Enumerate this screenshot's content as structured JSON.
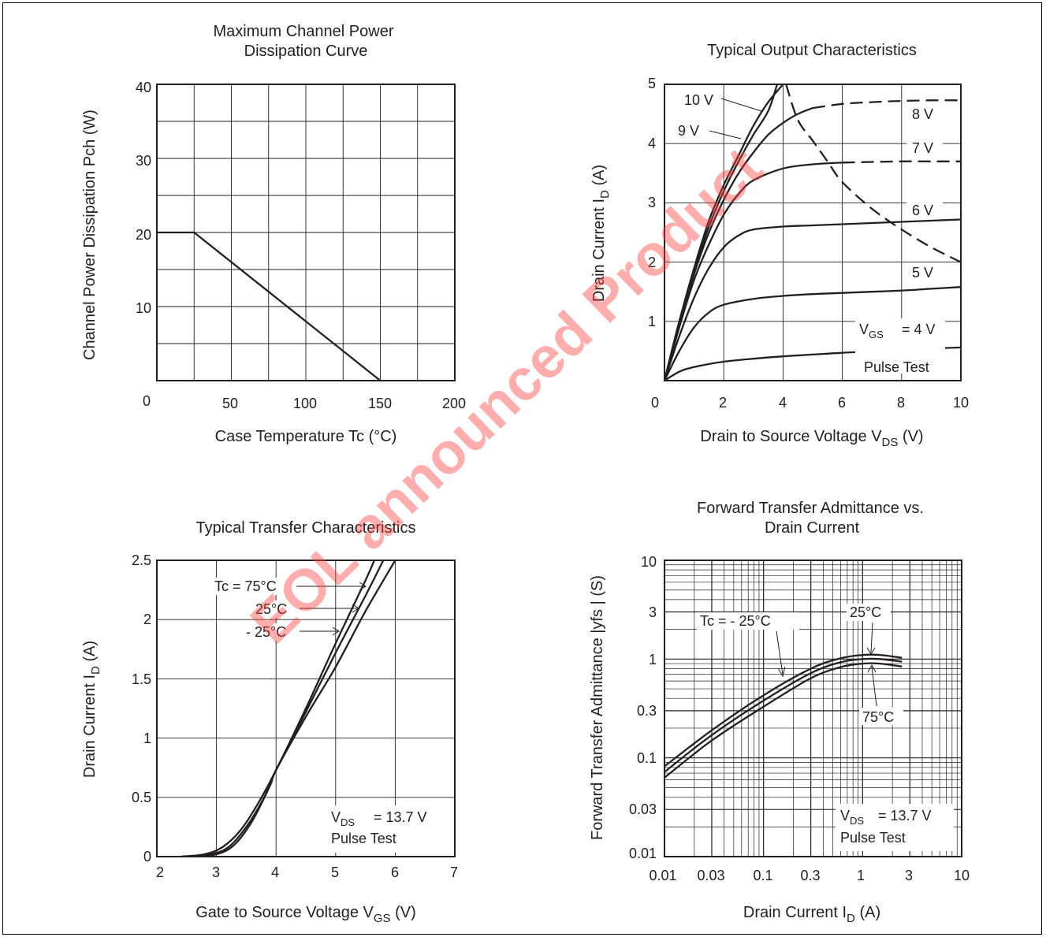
{
  "watermark": {
    "text": "EOL announced Product",
    "color": "#ff0000"
  },
  "colors": {
    "ink": "#231f20",
    "grid": "#231f20"
  },
  "chart_data": [
    {
      "id": "power",
      "type": "line",
      "title_lines": [
        "Maximum Channel Power",
        "Dissipation Curve"
      ],
      "xlabel": "Case Temperature   Tc  (°C)",
      "ylabel": "Channel Power Dissipation    Pch  (W)",
      "xlim": [
        0,
        200
      ],
      "ylim": [
        0,
        40
      ],
      "x_ticks": [
        "0",
        "50",
        "100",
        "150",
        "200"
      ],
      "y_ticks": [
        "10",
        "20",
        "30",
        "40"
      ],
      "series": [
        {
          "x": [
            0,
            25,
            150
          ],
          "y": [
            20,
            20,
            0
          ]
        }
      ]
    },
    {
      "id": "output",
      "type": "line",
      "title": "Typical Output Characteristics",
      "xlabel": {
        "main": "Drain to Source Voltage   V",
        "sub": "DS",
        "unit": "  (V)"
      },
      "ylabel": {
        "main": "Drain Current   I",
        "sub": "D",
        "unit": "  (A)"
      },
      "xlim": [
        0,
        10
      ],
      "ylim": [
        0,
        5
      ],
      "x_ticks": [
        "0",
        "2",
        "4",
        "6",
        "8",
        "10"
      ],
      "y_ticks": [
        "1",
        "2",
        "3",
        "4",
        "5"
      ],
      "series": [
        {
          "name": "10 V",
          "x": [
            0,
            0.5,
            1,
            1.5,
            2,
            2.5,
            3,
            3.5,
            4
          ],
          "y": [
            0,
            1.0,
            1.9,
            2.7,
            3.3,
            3.8,
            4.3,
            4.7,
            5.0
          ]
        },
        {
          "name": "9 V",
          "x": [
            0,
            0.5,
            1,
            1.5,
            2,
            2.5,
            3,
            3.5,
            3.8
          ],
          "y": [
            0,
            1.0,
            1.85,
            2.6,
            3.2,
            3.7,
            4.15,
            4.55,
            5.0
          ]
        },
        {
          "name": "8 V",
          "x": [
            0,
            0.5,
            1,
            1.5,
            2,
            2.5,
            3,
            3.5,
            4,
            4.5,
            5
          ],
          "y": [
            0,
            0.95,
            1.8,
            2.5,
            3.05,
            3.5,
            3.85,
            4.15,
            4.35,
            4.5,
            4.6
          ]
        },
        {
          "name": "8 V (ext)",
          "x": [
            5,
            6,
            7,
            8,
            9,
            10
          ],
          "y": [
            4.6,
            4.67,
            4.7,
            4.72,
            4.73,
            4.73
          ]
        },
        {
          "name": "7 V",
          "x": [
            0,
            0.5,
            1,
            1.5,
            2,
            2.5,
            3,
            4,
            5,
            6
          ],
          "y": [
            0,
            0.9,
            1.7,
            2.3,
            2.8,
            3.15,
            3.38,
            3.58,
            3.65,
            3.68
          ]
        },
        {
          "name": "7 V (ext)",
          "x": [
            6,
            7,
            8,
            9,
            10
          ],
          "y": [
            3.68,
            3.69,
            3.7,
            3.7,
            3.7
          ]
        },
        {
          "name": "6 V",
          "x": [
            0,
            0.5,
            1,
            1.5,
            2,
            2.5,
            3,
            4,
            5,
            6,
            7,
            8,
            9,
            10
          ],
          "y": [
            0,
            0.75,
            1.4,
            1.9,
            2.25,
            2.45,
            2.55,
            2.6,
            2.62,
            2.64,
            2.66,
            2.68,
            2.7,
            2.72
          ]
        },
        {
          "name": "5 V",
          "x": [
            0,
            0.5,
            1,
            1.5,
            2,
            3,
            4,
            5,
            6,
            7,
            8,
            9,
            10
          ],
          "y": [
            0,
            0.5,
            0.9,
            1.15,
            1.28,
            1.38,
            1.43,
            1.46,
            1.48,
            1.5,
            1.52,
            1.55,
            1.58
          ]
        },
        {
          "name": "VGS = 4 V",
          "x": [
            0,
            0.5,
            1,
            2,
            3,
            4,
            5,
            6,
            7,
            8,
            9,
            10
          ],
          "y": [
            0,
            0.15,
            0.23,
            0.32,
            0.37,
            0.41,
            0.44,
            0.47,
            0.49,
            0.51,
            0.54,
            0.56
          ]
        },
        {
          "name": "Pch limit",
          "x": [
            4.1,
            4.5,
            5,
            5.5,
            6,
            7,
            8,
            9,
            10
          ],
          "y": [
            5.0,
            4.4,
            4.05,
            3.7,
            3.35,
            2.9,
            2.55,
            2.25,
            2.0
          ]
        }
      ],
      "curve_labels": [
        "10 V",
        "9 V",
        "8 V",
        "7 V",
        "6 V",
        "5 V"
      ],
      "annotations": {
        "vgs_main": "V",
        "vgs_sub": "GS",
        "vgs_value": "= 4 V",
        "pulse": "Pulse Test"
      }
    },
    {
      "id": "transfer",
      "type": "line",
      "title": "Typical Transfer Characteristics",
      "xlabel": {
        "main": "Gate to Source Voltage   V",
        "sub": "GS",
        "unit": "  (V)"
      },
      "ylabel": {
        "main": "Drain Current   I",
        "sub": "D",
        "unit": "  (A)"
      },
      "xlim": [
        2,
        7
      ],
      "ylim": [
        0,
        2.5
      ],
      "x_ticks": [
        "2",
        "3",
        "4",
        "5",
        "6",
        "7"
      ],
      "y_ticks": [
        "0",
        "0.5",
        "1",
        "1.5",
        "2",
        "2.5"
      ],
      "series": [
        {
          "name": "Tc =  75°C",
          "x": [
            2.4,
            2.8,
            3.1,
            3.4,
            3.7,
            4.0,
            4.5,
            5.0,
            5.5,
            5.65
          ],
          "y": [
            0.0,
            0.02,
            0.08,
            0.22,
            0.45,
            0.73,
            1.25,
            1.8,
            2.33,
            2.5
          ]
        },
        {
          "name": "25°C",
          "x": [
            2.5,
            2.9,
            3.2,
            3.5,
            3.8,
            4.0,
            4.5,
            5.0,
            5.5,
            5.8
          ],
          "y": [
            0.0,
            0.02,
            0.08,
            0.25,
            0.5,
            0.73,
            1.22,
            1.72,
            2.2,
            2.5
          ]
        },
        {
          "name": "- 25°C",
          "x": [
            2.6,
            3.0,
            3.3,
            3.6,
            3.9,
            4.0,
            4.5,
            5.0,
            5.5,
            6.0
          ],
          "y": [
            0.0,
            0.02,
            0.1,
            0.3,
            0.6,
            0.73,
            1.18,
            1.6,
            2.07,
            2.5
          ]
        }
      ],
      "annotations": {
        "vds_main": "V",
        "vds_sub": "DS",
        "vds_value": "= 13.7 V",
        "pulse": "Pulse Test"
      }
    },
    {
      "id": "admittance",
      "type": "line",
      "scale": "log-log",
      "title_lines": [
        "Forward Transfer Admittance vs.",
        "Drain Current"
      ],
      "xlabel": {
        "main": "Drain Current   I",
        "sub": "D",
        "unit": "  (A)"
      },
      "ylabel": "Forward Transfer Admittance   |yfs |   (S)",
      "xlim": [
        0.01,
        10
      ],
      "ylim": [
        0.01,
        10
      ],
      "x_ticks": [
        "0.01",
        "0.03",
        "0.1",
        "0.3",
        "1",
        "3",
        "10"
      ],
      "y_ticks": [
        "0.01",
        "0.03",
        "0.1",
        "0.3",
        "1",
        "3",
        "10"
      ],
      "series": [
        {
          "name": "Tc = - 25°C",
          "x": [
            0.01,
            0.03,
            0.1,
            0.3,
            0.6,
            1,
            1.5,
            2.5
          ],
          "y": [
            0.082,
            0.19,
            0.43,
            0.8,
            1.02,
            1.1,
            1.1,
            1.03
          ]
        },
        {
          "name": "25°C",
          "x": [
            0.01,
            0.03,
            0.1,
            0.3,
            0.6,
            1,
            1.5,
            2.5
          ],
          "y": [
            0.072,
            0.17,
            0.38,
            0.72,
            0.93,
            1.0,
            1.0,
            0.94
          ]
        },
        {
          "name": "75°C",
          "x": [
            0.01,
            0.03,
            0.1,
            0.3,
            0.6,
            1,
            1.5,
            2.5
          ],
          "y": [
            0.063,
            0.15,
            0.33,
            0.64,
            0.83,
            0.9,
            0.9,
            0.84
          ]
        }
      ],
      "curve_labels": [
        "Tc = - 25°C",
        "25°C",
        "75°C"
      ],
      "annotations": {
        "vds_main": "V",
        "vds_sub": "DS",
        "vds_value": "= 13.7 V",
        "pulse": "Pulse Test"
      }
    }
  ]
}
